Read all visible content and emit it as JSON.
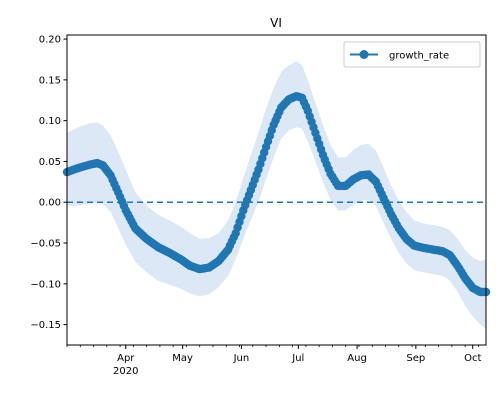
{
  "chart_data": {
    "type": "line",
    "title": "VI",
    "xlabel": "",
    "ylabel": "",
    "x_axis": {
      "type": "date",
      "range": [
        "2020-03-01",
        "2020-10-08"
      ],
      "ticks": [
        {
          "date": "2020-04-01",
          "label": "Apr",
          "sublabel": "2020"
        },
        {
          "date": "2020-05-01",
          "label": "May",
          "sublabel": ""
        },
        {
          "date": "2020-06-01",
          "label": "Jun",
          "sublabel": ""
        },
        {
          "date": "2020-07-01",
          "label": "Jul",
          "sublabel": ""
        },
        {
          "date": "2020-08-01",
          "label": "Aug",
          "sublabel": ""
        },
        {
          "date": "2020-09-01",
          "label": "Sep",
          "sublabel": ""
        },
        {
          "date": "2020-10-01",
          "label": "Oct",
          "sublabel": ""
        }
      ]
    },
    "y_axis": {
      "range": [
        -0.175,
        0.205
      ],
      "ticks": [
        -0.15,
        -0.1,
        -0.05,
        0.0,
        0.05,
        0.1,
        0.15,
        0.2
      ],
      "tick_labels": [
        "−0.15",
        "−0.10",
        "−0.05",
        "0.00",
        "0.05",
        "0.10",
        "0.15",
        "0.20"
      ]
    },
    "grid": false,
    "legend": {
      "position": "top-right",
      "entries": [
        "growth_rate"
      ]
    },
    "reference_line": {
      "y": 0.0,
      "style": "dashed",
      "color": "#1f77b4"
    },
    "series": [
      {
        "name": "growth_rate",
        "color": "#1f77b4",
        "marker": "circle",
        "band_color": "#dce8f5",
        "points": [
          [
            "2020-03-01",
            0.037,
            -0.005,
            0.085
          ],
          [
            "2020-03-07",
            0.042,
            -0.004,
            0.092
          ],
          [
            "2020-03-13",
            0.046,
            -0.002,
            0.097
          ],
          [
            "2020-03-17",
            0.048,
            0.0,
            0.098
          ],
          [
            "2020-03-20",
            0.045,
            -0.002,
            0.094
          ],
          [
            "2020-03-24",
            0.033,
            -0.012,
            0.082
          ],
          [
            "2020-03-28",
            0.012,
            -0.032,
            0.062
          ],
          [
            "2020-04-01",
            -0.01,
            -0.052,
            0.04
          ],
          [
            "2020-04-06",
            -0.032,
            -0.073,
            0.012
          ],
          [
            "2020-04-12",
            -0.045,
            -0.086,
            -0.004
          ],
          [
            "2020-04-18",
            -0.055,
            -0.096,
            -0.015
          ],
          [
            "2020-04-24",
            -0.062,
            -0.101,
            -0.022
          ],
          [
            "2020-04-30",
            -0.07,
            -0.106,
            -0.03
          ],
          [
            "2020-05-05",
            -0.078,
            -0.112,
            -0.038
          ],
          [
            "2020-05-10",
            -0.082,
            -0.115,
            -0.045
          ],
          [
            "2020-05-15",
            -0.08,
            -0.113,
            -0.044
          ],
          [
            "2020-05-20",
            -0.072,
            -0.104,
            -0.038
          ],
          [
            "2020-05-25",
            -0.058,
            -0.09,
            -0.022
          ],
          [
            "2020-05-29",
            -0.038,
            -0.07,
            0.0
          ],
          [
            "2020-06-02",
            -0.01,
            -0.045,
            0.03
          ],
          [
            "2020-06-06",
            0.015,
            -0.022,
            0.058
          ],
          [
            "2020-06-10",
            0.04,
            0.0,
            0.085
          ],
          [
            "2020-06-14",
            0.068,
            0.028,
            0.115
          ],
          [
            "2020-06-18",
            0.095,
            0.055,
            0.14
          ],
          [
            "2020-06-22",
            0.116,
            0.078,
            0.16
          ],
          [
            "2020-06-26",
            0.126,
            0.088,
            0.168
          ],
          [
            "2020-06-30",
            0.13,
            0.092,
            0.173
          ],
          [
            "2020-07-03",
            0.128,
            0.09,
            0.168
          ],
          [
            "2020-07-06",
            0.112,
            0.075,
            0.15
          ],
          [
            "2020-07-10",
            0.085,
            0.05,
            0.122
          ],
          [
            "2020-07-14",
            0.058,
            0.025,
            0.095
          ],
          [
            "2020-07-18",
            0.035,
            0.003,
            0.07
          ],
          [
            "2020-07-22",
            0.02,
            -0.01,
            0.055
          ],
          [
            "2020-07-26",
            0.02,
            -0.01,
            0.055
          ],
          [
            "2020-07-30",
            0.028,
            -0.003,
            0.064
          ],
          [
            "2020-08-03",
            0.033,
            0.002,
            0.07
          ],
          [
            "2020-08-07",
            0.034,
            0.003,
            0.072
          ],
          [
            "2020-08-11",
            0.025,
            -0.005,
            0.063
          ],
          [
            "2020-08-15",
            0.005,
            -0.025,
            0.042
          ],
          [
            "2020-08-19",
            -0.015,
            -0.045,
            0.02
          ],
          [
            "2020-08-23",
            -0.032,
            -0.062,
            0.002
          ],
          [
            "2020-08-27",
            -0.045,
            -0.075,
            -0.012
          ],
          [
            "2020-08-31",
            -0.053,
            -0.083,
            -0.022
          ],
          [
            "2020-09-05",
            -0.056,
            -0.086,
            -0.026
          ],
          [
            "2020-09-10",
            -0.058,
            -0.088,
            -0.028
          ],
          [
            "2020-09-15",
            -0.06,
            -0.09,
            -0.03
          ],
          [
            "2020-09-19",
            -0.065,
            -0.096,
            -0.034
          ],
          [
            "2020-09-23",
            -0.078,
            -0.11,
            -0.045
          ],
          [
            "2020-09-27",
            -0.093,
            -0.127,
            -0.058
          ],
          [
            "2020-10-01",
            -0.105,
            -0.14,
            -0.068
          ],
          [
            "2020-10-05",
            -0.11,
            -0.15,
            -0.072
          ],
          [
            "2020-10-08",
            -0.11,
            -0.155,
            -0.07
          ]
        ]
      }
    ]
  }
}
